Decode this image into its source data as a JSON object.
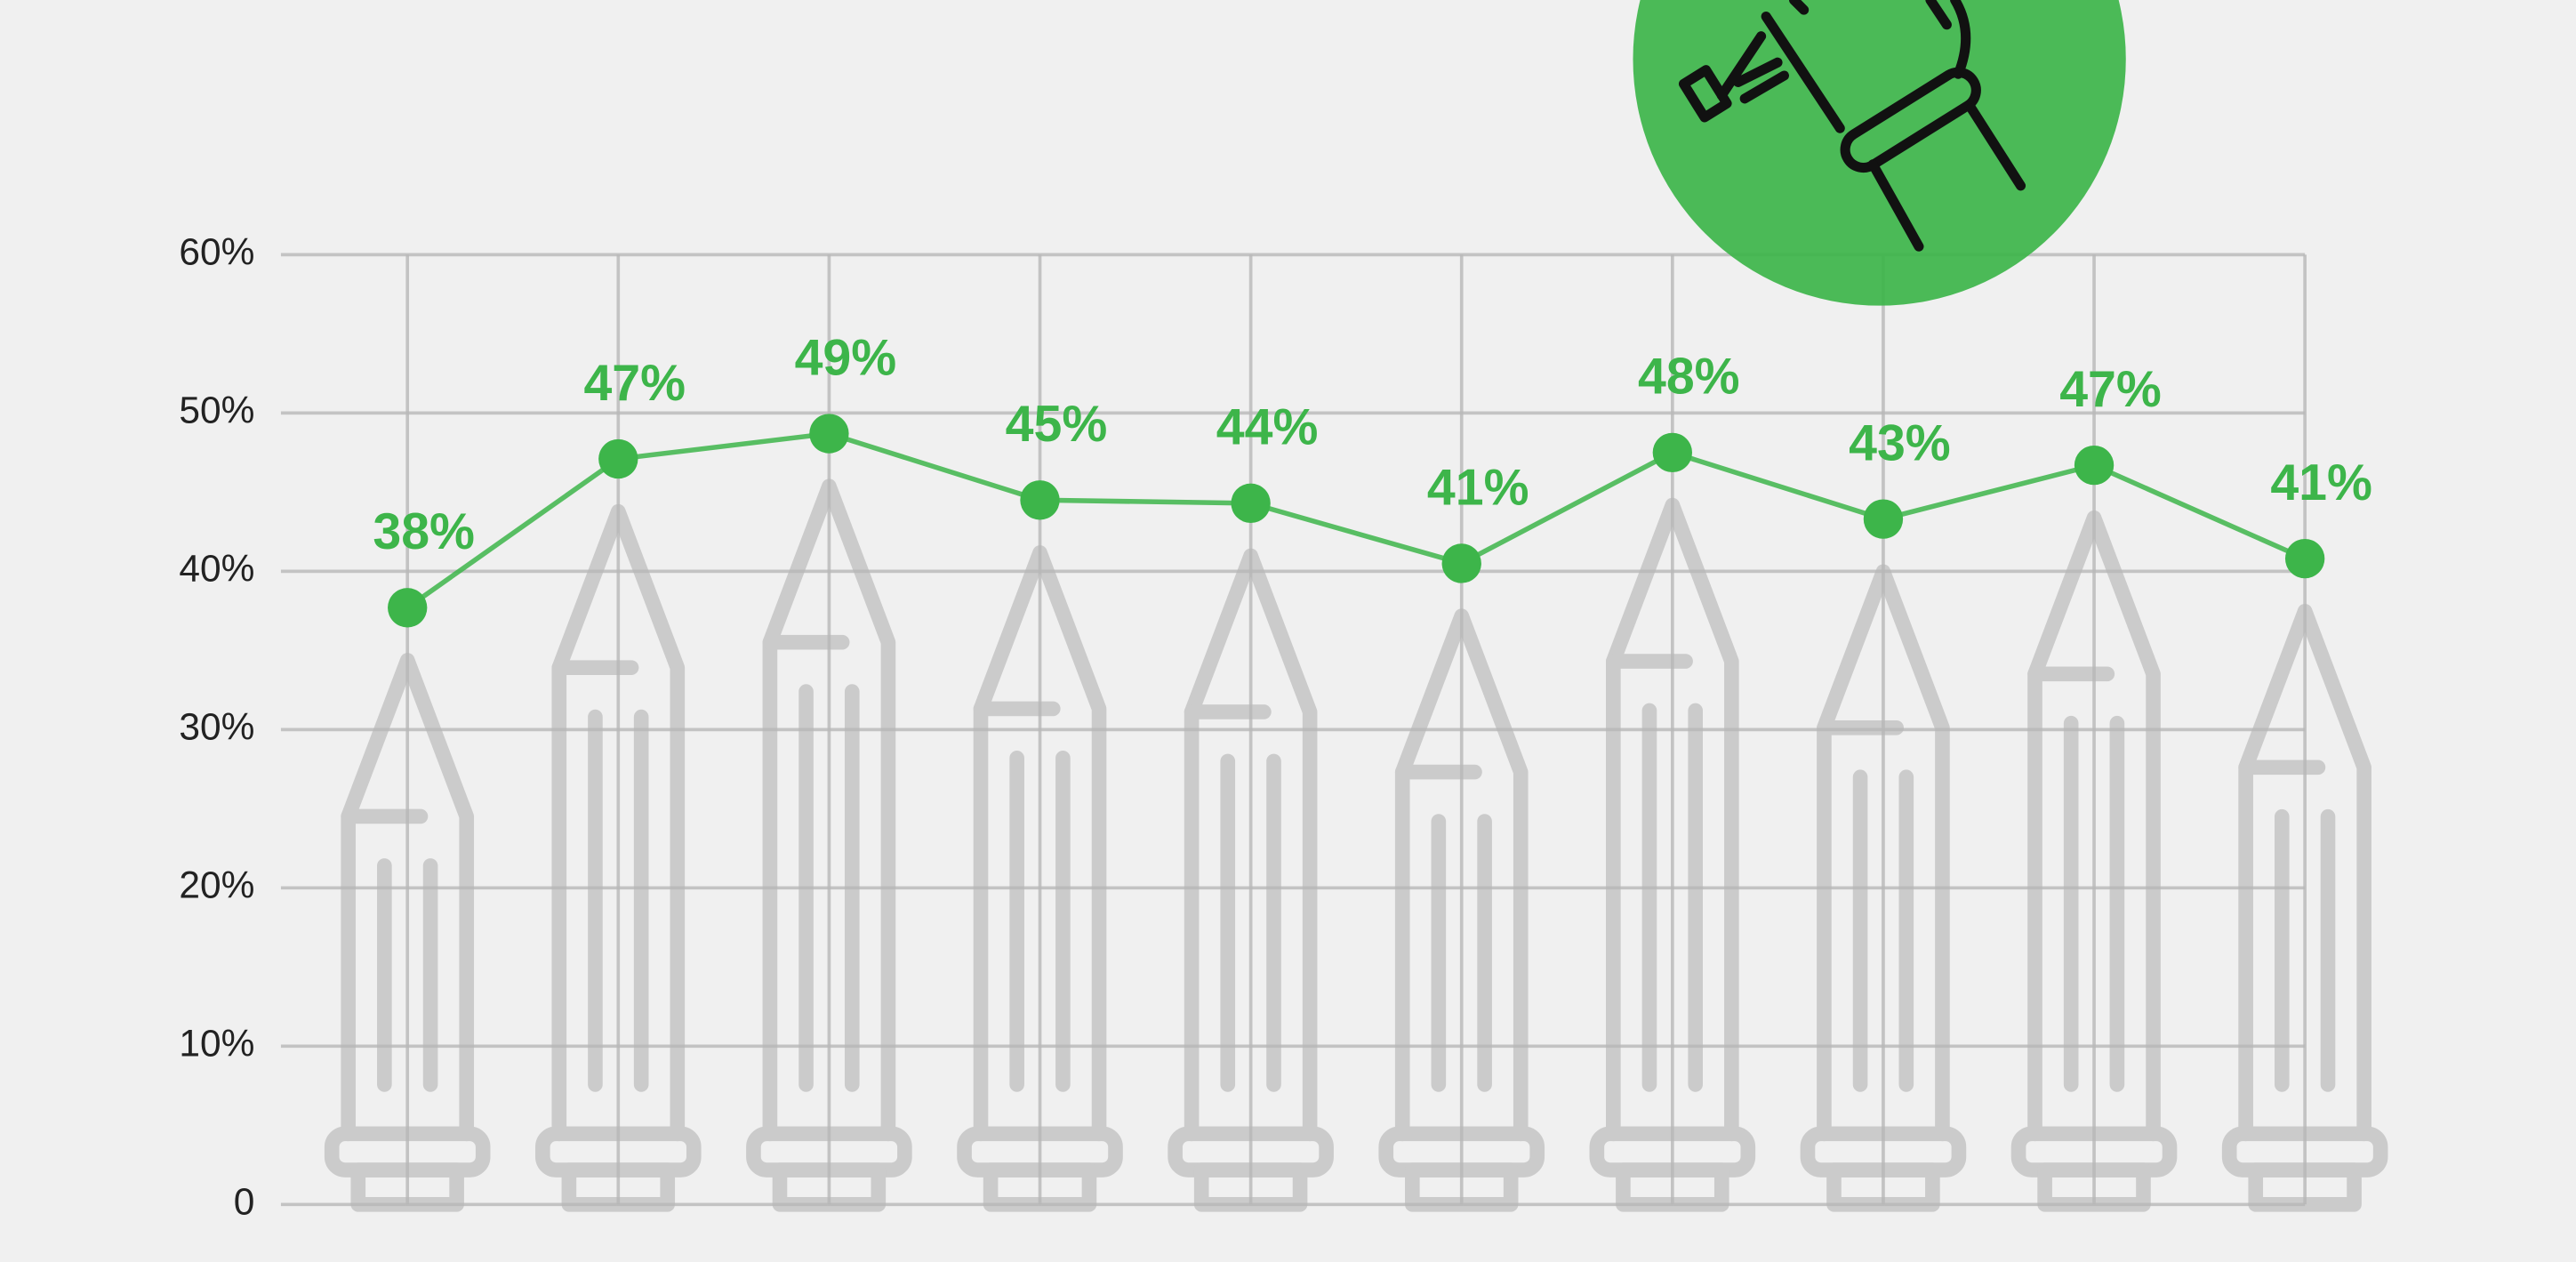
{
  "chart_data": {
    "type": "line",
    "categories": [
      null,
      null,
      null,
      null,
      null,
      null,
      null,
      null,
      null,
      null
    ],
    "series": [
      {
        "color": "#3db54a",
        "values": [
          37.7,
          47.1,
          48.7,
          44.5,
          44.3,
          40.5,
          47.5,
          43.3,
          46.7,
          40.8
        ],
        "value_labels": [
          "38%",
          "47%",
          "49%",
          "45%",
          "44%",
          "41%",
          "48%",
          "43%",
          "47%",
          "41%"
        ]
      }
    ],
    "ylim": [
      0,
      60
    ],
    "yticks": [
      0,
      {
        "value": 10,
        "label": "10%"
      },
      {
        "value": 20,
        "label": "20%"
      },
      {
        "value": 30,
        "label": "30%"
      },
      {
        "value": 40,
        "label": "40%"
      },
      {
        "value": 50,
        "label": "50%"
      },
      {
        "value": 60,
        "label": "60%"
      }
    ],
    "grid": true
  }
}
